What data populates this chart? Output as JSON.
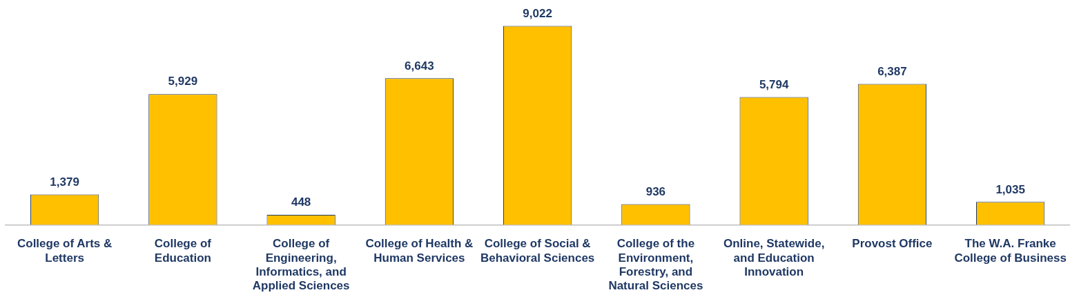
{
  "chart_data": {
    "type": "bar",
    "relative": false,
    "categories": [
      "College of Arts & Letters",
      "College of Education",
      "College of Engineering, Informatics, and Applied Sciences",
      "College of Health & Human Services",
      "College of Social & Behavioral Sciences",
      "College of the Environment, Forestry, and Natural Sciences",
      "Online, Statewide, and Education Innovation",
      "Provost Office",
      "The W.A. Franke College of Business"
    ],
    "values": [
      1379,
      5929,
      448,
      6643,
      9022,
      936,
      5794,
      6387,
      1035
    ],
    "value_labels": [
      "1,379",
      "5,929",
      "448",
      "6,643",
      "9,022",
      "936",
      "5,794",
      "6,387",
      "1,035"
    ],
    "color": "#ffc000",
    "grid": false,
    "legend": false
  }
}
